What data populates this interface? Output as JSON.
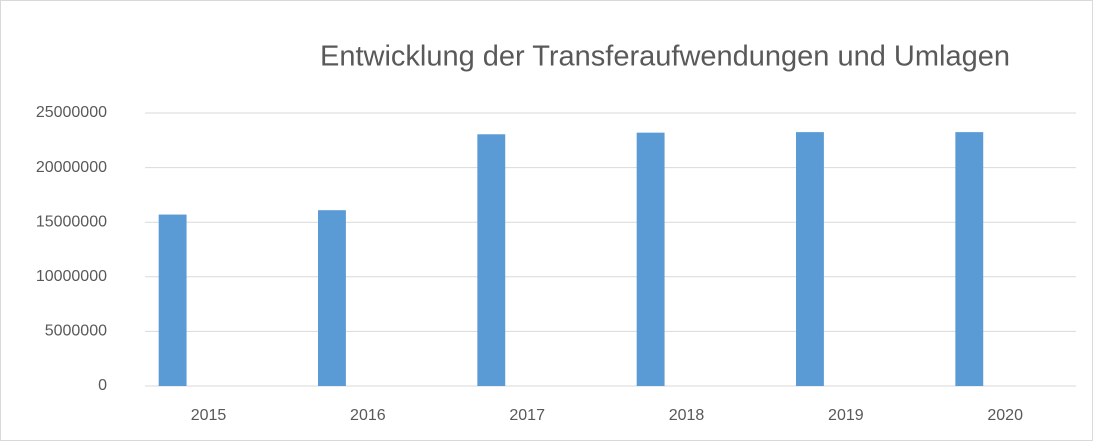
{
  "chart_data": {
    "type": "bar",
    "title": "Entwicklung der Transferaufwendungen und Umlagen",
    "categories": [
      "2015",
      "2016",
      "2017",
      "2018",
      "2019",
      "2020"
    ],
    "values": [
      15700000,
      16100000,
      23050000,
      23200000,
      23250000,
      23250000
    ],
    "color": "#5b9bd5",
    "ylim": [
      0,
      25000000
    ],
    "yticks": [
      0,
      5000000,
      10000000,
      15000000,
      20000000,
      25000000
    ],
    "grid": true
  }
}
